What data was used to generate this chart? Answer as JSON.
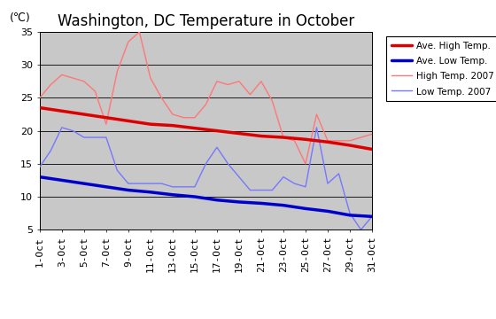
{
  "title": "Washington, DC Temperature in October",
  "ylabel": "(℃)",
  "ylim": [
    5,
    35
  ],
  "yticks": [
    5,
    10,
    15,
    20,
    25,
    30,
    35
  ],
  "x_labels": [
    "1-Oct",
    "3-Oct",
    "5-Oct",
    "7-Oct",
    "9-Oct",
    "11-Oct",
    "13-Oct",
    "15-Oct",
    "17-Oct",
    "19-Oct",
    "21-Oct",
    "23-Oct",
    "25-Oct",
    "27-Oct",
    "29-Oct",
    "31-Oct"
  ],
  "x_days": [
    1,
    3,
    5,
    7,
    9,
    11,
    13,
    15,
    17,
    19,
    21,
    23,
    25,
    27,
    29,
    31
  ],
  "ave_high_days": [
    1,
    3,
    5,
    7,
    9,
    11,
    13,
    15,
    17,
    19,
    21,
    23,
    25,
    27,
    29,
    31
  ],
  "ave_high": [
    23.5,
    23.0,
    22.5,
    22.0,
    21.5,
    21.0,
    20.8,
    20.4,
    20.0,
    19.6,
    19.2,
    19.0,
    18.7,
    18.3,
    17.8,
    17.2
  ],
  "ave_low_days": [
    1,
    3,
    5,
    7,
    9,
    11,
    13,
    15,
    17,
    19,
    21,
    23,
    25,
    27,
    29,
    31
  ],
  "ave_low": [
    13.0,
    12.5,
    12.0,
    11.5,
    11.0,
    10.7,
    10.3,
    10.0,
    9.5,
    9.2,
    9.0,
    8.7,
    8.2,
    7.8,
    7.2,
    7.0
  ],
  "high_2007_days": [
    1,
    2,
    3,
    4,
    5,
    6,
    7,
    8,
    9,
    10,
    11,
    12,
    13,
    14,
    15,
    16,
    17,
    18,
    19,
    20,
    21,
    22,
    23,
    24,
    25,
    26,
    27,
    28,
    29,
    30,
    31
  ],
  "high_2007": [
    25.0,
    27.0,
    28.5,
    28.0,
    27.5,
    26.0,
    21.0,
    29.0,
    33.5,
    35.0,
    28.0,
    25.0,
    22.5,
    22.0,
    22.0,
    24.0,
    27.5,
    27.0,
    27.5,
    25.5,
    27.5,
    24.5,
    19.0,
    18.5,
    15.0,
    22.5,
    18.5,
    18.5,
    18.5,
    19.0,
    19.5
  ],
  "low_2007_days": [
    1,
    2,
    3,
    4,
    5,
    6,
    7,
    8,
    9,
    10,
    11,
    12,
    13,
    14,
    15,
    16,
    17,
    18,
    19,
    20,
    21,
    22,
    23,
    24,
    25,
    26,
    27,
    28,
    29,
    30,
    31
  ],
  "low_2007": [
    14.5,
    17.0,
    20.5,
    20.0,
    19.0,
    19.0,
    19.0,
    14.0,
    12.0,
    12.0,
    12.0,
    12.0,
    11.5,
    11.5,
    11.5,
    15.0,
    17.5,
    15.0,
    13.0,
    11.0,
    11.0,
    11.0,
    13.0,
    12.0,
    11.5,
    20.5,
    12.0,
    13.5,
    7.5,
    5.0,
    7.0
  ],
  "ave_high_color": "#dd0000",
  "ave_low_color": "#0000cc",
  "high_2007_color": "#ff7777",
  "low_2007_color": "#7777ff",
  "ave_high_lw": 2.5,
  "ave_low_lw": 2.5,
  "high_2007_lw": 1.0,
  "low_2007_lw": 1.0,
  "bg_color": "#c8c8c8",
  "grid_color": "#000000",
  "title_fontsize": 12,
  "tick_fontsize": 8
}
